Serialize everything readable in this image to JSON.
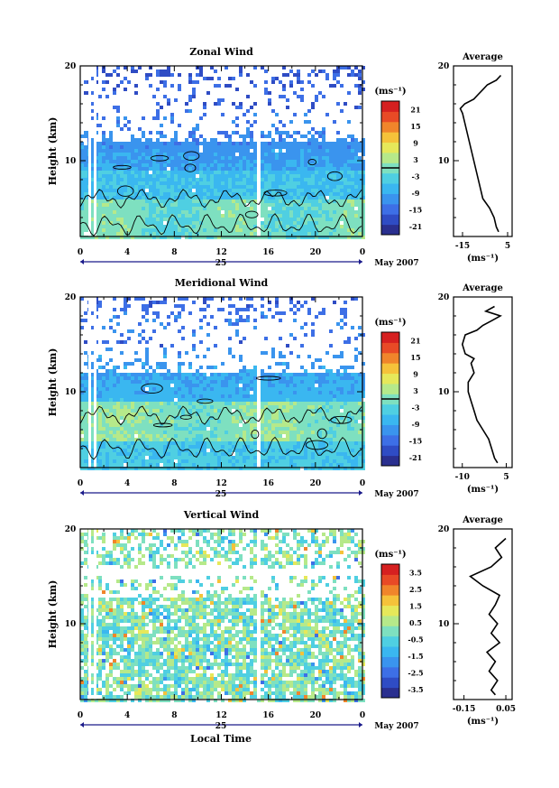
{
  "figure": {
    "date_label": "May 2007",
    "day_label": "25",
    "xlabel_bottom": "Local Time"
  },
  "colormap": [
    "#2a2f8f",
    "#2f4cc4",
    "#3d6fe6",
    "#3a94ee",
    "#3ab7f0",
    "#4fcfe2",
    "#7ee0c0",
    "#b6e98a",
    "#e6e85a",
    "#f5c23a",
    "#f0852b",
    "#e84a26",
    "#d62020"
  ],
  "chart_data": [
    {
      "type": "heatmap",
      "title": "Zonal Wind",
      "ylabel": "Height (km)",
      "xticks": [
        "0",
        "4",
        "8",
        "12",
        "16",
        "20",
        "0"
      ],
      "xlim": [
        0,
        24
      ],
      "yticks": [
        "10",
        "20"
      ],
      "ylim": [
        2,
        20
      ],
      "colorbar_unit": "(ms⁻¹)",
      "colorbar_ticks": [
        "21",
        "15",
        "9",
        "3",
        "-3",
        "-9",
        "-15",
        "-21"
      ],
      "colorbar_range": [
        -24,
        24
      ],
      "contour_level": 0,
      "profile": {
        "title": "Average",
        "xlabel": "(ms⁻¹)",
        "xticks": [
          "-15",
          "5"
        ],
        "xlim": [
          -19,
          7
        ],
        "height_km": [
          2.5,
          3,
          4,
          5,
          6,
          7,
          8,
          9,
          10,
          11,
          12,
          13,
          14,
          15,
          15.5,
          16,
          16.5,
          17,
          17.5,
          18,
          18.5,
          19
        ],
        "values": [
          1,
          0,
          -1,
          -3,
          -6,
          -7,
          -8,
          -9,
          -10,
          -11,
          -12,
          -13,
          -14,
          -15,
          -16,
          -14,
          -10,
          -8,
          -6,
          -4,
          0,
          2
        ]
      }
    },
    {
      "type": "heatmap",
      "title": "Meridional Wind",
      "ylabel": "Height (km)",
      "xticks": [
        "0",
        "4",
        "8",
        "12",
        "16",
        "20",
        "0"
      ],
      "xlim": [
        0,
        24
      ],
      "yticks": [
        "10",
        "20"
      ],
      "ylim": [
        2,
        20
      ],
      "colorbar_unit": "(ms⁻¹)",
      "colorbar_ticks": [
        "21",
        "15",
        "9",
        "3",
        "-3",
        "-9",
        "-15",
        "-21"
      ],
      "colorbar_range": [
        -24,
        24
      ],
      "contour_level": 0,
      "profile": {
        "title": "Average",
        "xlabel": "(ms⁻¹)",
        "xticks": [
          "-10",
          "5"
        ],
        "xlim": [
          -13,
          7
        ],
        "height_km": [
          2.5,
          3,
          4,
          5,
          6,
          7,
          8,
          9,
          10,
          11,
          12,
          13,
          13.5,
          14,
          15,
          16,
          16.5,
          17,
          17.5,
          18,
          18.5,
          19
        ],
        "values": [
          2,
          1,
          0,
          -1,
          -3,
          -5,
          -6,
          -7,
          -8,
          -8,
          -6,
          -7,
          -6,
          -9,
          -10,
          -9,
          -5,
          -3,
          0,
          3,
          -2,
          1
        ]
      }
    },
    {
      "type": "heatmap",
      "title": "Vertical Wind",
      "ylabel": "Height (km)",
      "xlabel": "Local Time",
      "xticks": [
        "0",
        "4",
        "8",
        "12",
        "16",
        "20",
        "0"
      ],
      "xlim": [
        0,
        24
      ],
      "yticks": [
        "10",
        "20"
      ],
      "ylim": [
        2,
        20
      ],
      "colorbar_unit": "(ms⁻¹)",
      "colorbar_ticks": [
        "3.5",
        "2.5",
        "1.5",
        "0.5",
        "-0.5",
        "-1.5",
        "-2.5",
        "-3.5"
      ],
      "colorbar_range": [
        -4,
        4
      ],
      "profile": {
        "title": "Average",
        "xlabel": "(ms⁻¹)",
        "xticks": [
          "-0.15",
          "0.05"
        ],
        "xlim": [
          -0.2,
          0.08
        ],
        "height_km": [
          2.5,
          3,
          4,
          5,
          6,
          7,
          8,
          9,
          10,
          11,
          12,
          13,
          14,
          15,
          16,
          17,
          18,
          19
        ],
        "values": [
          0.0,
          -0.02,
          0.01,
          -0.03,
          0.0,
          -0.04,
          0.02,
          -0.02,
          0.01,
          -0.03,
          0.0,
          0.02,
          -0.06,
          -0.12,
          -0.02,
          0.03,
          0.0,
          0.05
        ]
      }
    }
  ]
}
